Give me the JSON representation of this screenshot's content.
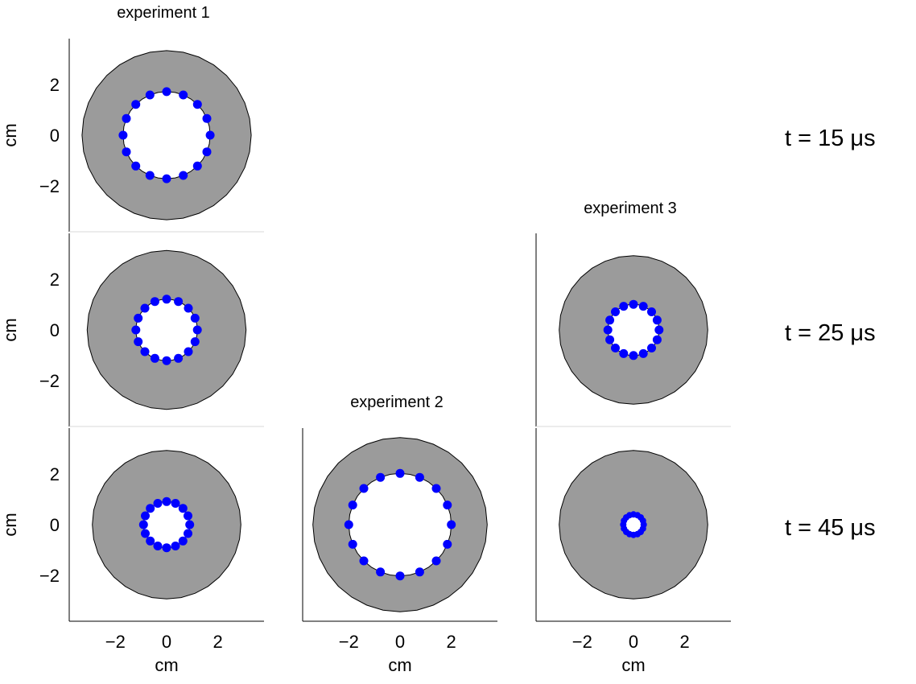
{
  "chart_data": {
    "type": "scatter",
    "xlabel": "cm",
    "ylabel": "cm",
    "xlim": [
      -3.8,
      3.8
    ],
    "ylim": [
      -3.8,
      3.8
    ],
    "xticks": [
      "−2",
      "0",
      "2"
    ],
    "yticks": [
      "2",
      "0",
      "−2"
    ],
    "grid": false,
    "colors": {
      "shell": "#9b9b9b",
      "points": "#0000ff",
      "outline": "#000000"
    },
    "rows": [
      {
        "label": "t = 15 μs"
      },
      {
        "label": "t = 25 μs"
      },
      {
        "label": "t = 45 μs"
      }
    ],
    "panels": [
      {
        "title": "experiment 1",
        "time_label": "t = 15 μs",
        "outer_radius": 3.3,
        "inner_radius": 1.7,
        "marker_count": 16
      },
      {
        "title": "",
        "time_label": "t = 25 μs",
        "outer_radius": 3.1,
        "inner_radius": 1.2,
        "marker_count": 16
      },
      {
        "title": "",
        "time_label": "t = 45 μs",
        "outer_radius": 2.9,
        "inner_radius": 0.9,
        "marker_count": 16
      },
      {
        "title": "experiment 2",
        "time_label": "t = 45 μs",
        "outer_radius": 3.4,
        "inner_radius": 2.0,
        "marker_count": 16
      },
      {
        "title": "experiment 3",
        "time_label": "t = 25 μs",
        "outer_radius": 2.9,
        "inner_radius": 1.0,
        "marker_count": 16
      },
      {
        "title": "",
        "time_label": "t = 45 μs",
        "outer_radius": 2.9,
        "inner_radius": 0.4,
        "marker_count": 16
      }
    ]
  }
}
